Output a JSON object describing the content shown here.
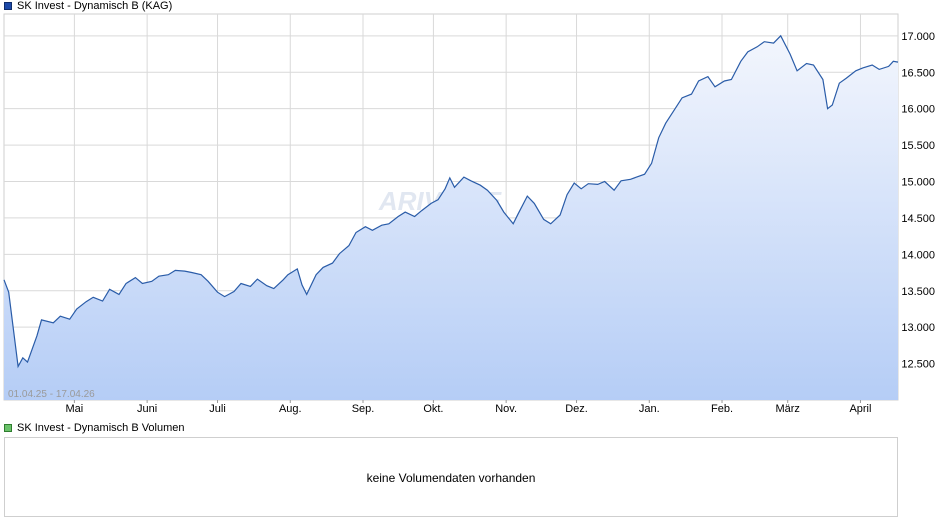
{
  "legend_price": "SK Invest - Dynamisch B (KAG)",
  "legend_volume": "SK Invest - Dynamisch B Volumen",
  "volume_message": "keine Volumendaten vorhanden",
  "range_label": "01.04.25 - 17.04.26",
  "watermark": "ARIVA.DE",
  "colors": {
    "line": "#2a5ca8",
    "fill_top": "#f3f6fd",
    "fill_bottom": "#b5cdf6",
    "grid": "#d9d9d9"
  },
  "chart_data": {
    "type": "area",
    "y_ticks": [
      "17.000",
      "16.500",
      "16.000",
      "15.500",
      "15.000",
      "14.500",
      "14.000",
      "13.500",
      "13.000",
      "12.500"
    ],
    "y_tick_values": [
      17000,
      16500,
      16000,
      15500,
      15000,
      14500,
      14000,
      13500,
      13000,
      12500
    ],
    "ylim": [
      12000,
      17300
    ],
    "x_ticks": [
      "Mai",
      "Juni",
      "Juli",
      "Aug.",
      "Sep.",
      "Okt.",
      "Nov.",
      "Dez.",
      "Jan.",
      "Feb.",
      "März",
      "April"
    ],
    "x_tick_dates": [
      "2025-05-01",
      "2025-06-01",
      "2025-07-01",
      "2025-08-01",
      "2025-09-01",
      "2025-10-01",
      "2025-11-01",
      "2025-12-01",
      "2026-01-01",
      "2026-02-01",
      "2026-03-01",
      "2026-04-01"
    ],
    "xlim": [
      "2025-04-01",
      "2026-04-17"
    ],
    "series": [
      {
        "points": [
          [
            "2025-04-01",
            13650
          ],
          [
            "2025-04-03",
            13480
          ],
          [
            "2025-04-07",
            12460
          ],
          [
            "2025-04-09",
            12580
          ],
          [
            "2025-04-11",
            12520
          ],
          [
            "2025-04-15",
            12880
          ],
          [
            "2025-04-17",
            13100
          ],
          [
            "2025-04-22",
            13060
          ],
          [
            "2025-04-25",
            13150
          ],
          [
            "2025-04-29",
            13110
          ],
          [
            "2025-05-02",
            13250
          ],
          [
            "2025-05-06",
            13350
          ],
          [
            "2025-05-09",
            13410
          ],
          [
            "2025-05-13",
            13360
          ],
          [
            "2025-05-16",
            13520
          ],
          [
            "2025-05-20",
            13450
          ],
          [
            "2025-05-23",
            13600
          ],
          [
            "2025-05-27",
            13680
          ],
          [
            "2025-05-30",
            13600
          ],
          [
            "2025-06-03",
            13630
          ],
          [
            "2025-06-06",
            13700
          ],
          [
            "2025-06-10",
            13720
          ],
          [
            "2025-06-13",
            13780
          ],
          [
            "2025-06-17",
            13770
          ],
          [
            "2025-06-20",
            13750
          ],
          [
            "2025-06-24",
            13720
          ],
          [
            "2025-06-27",
            13630
          ],
          [
            "2025-07-01",
            13480
          ],
          [
            "2025-07-04",
            13420
          ],
          [
            "2025-07-08",
            13490
          ],
          [
            "2025-07-11",
            13600
          ],
          [
            "2025-07-15",
            13560
          ],
          [
            "2025-07-18",
            13660
          ],
          [
            "2025-07-22",
            13570
          ],
          [
            "2025-07-25",
            13530
          ],
          [
            "2025-07-29",
            13650
          ],
          [
            "2025-07-31",
            13720
          ],
          [
            "2025-08-04",
            13800
          ],
          [
            "2025-08-06",
            13580
          ],
          [
            "2025-08-08",
            13450
          ],
          [
            "2025-08-12",
            13720
          ],
          [
            "2025-08-15",
            13820
          ],
          [
            "2025-08-19",
            13880
          ],
          [
            "2025-08-22",
            14010
          ],
          [
            "2025-08-26",
            14120
          ],
          [
            "2025-08-29",
            14300
          ],
          [
            "2025-09-02",
            14380
          ],
          [
            "2025-09-05",
            14330
          ],
          [
            "2025-09-09",
            14400
          ],
          [
            "2025-09-12",
            14420
          ],
          [
            "2025-09-16",
            14520
          ],
          [
            "2025-09-19",
            14580
          ],
          [
            "2025-09-23",
            14520
          ],
          [
            "2025-09-26",
            14600
          ],
          [
            "2025-09-30",
            14700
          ],
          [
            "2025-10-03",
            14750
          ],
          [
            "2025-10-06",
            14900
          ],
          [
            "2025-10-08",
            15050
          ],
          [
            "2025-10-10",
            14920
          ],
          [
            "2025-10-14",
            15060
          ],
          [
            "2025-10-17",
            15010
          ],
          [
            "2025-10-21",
            14950
          ],
          [
            "2025-10-24",
            14880
          ],
          [
            "2025-10-28",
            14740
          ],
          [
            "2025-10-31",
            14580
          ],
          [
            "2025-11-04",
            14420
          ],
          [
            "2025-11-06",
            14550
          ],
          [
            "2025-11-10",
            14800
          ],
          [
            "2025-11-13",
            14700
          ],
          [
            "2025-11-17",
            14480
          ],
          [
            "2025-11-20",
            14420
          ],
          [
            "2025-11-24",
            14540
          ],
          [
            "2025-11-27",
            14820
          ],
          [
            "2025-11-30",
            14980
          ],
          [
            "2025-12-03",
            14900
          ],
          [
            "2025-12-06",
            14970
          ],
          [
            "2025-12-10",
            14960
          ],
          [
            "2025-12-13",
            15000
          ],
          [
            "2025-12-17",
            14880
          ],
          [
            "2025-12-20",
            15010
          ],
          [
            "2025-12-24",
            15030
          ],
          [
            "2025-12-30",
            15100
          ],
          [
            "2026-01-02",
            15250
          ],
          [
            "2026-01-05",
            15600
          ],
          [
            "2026-01-08",
            15800
          ],
          [
            "2026-01-12",
            16000
          ],
          [
            "2026-01-15",
            16150
          ],
          [
            "2026-01-19",
            16200
          ],
          [
            "2026-01-22",
            16380
          ],
          [
            "2026-01-26",
            16440
          ],
          [
            "2026-01-29",
            16300
          ],
          [
            "2026-02-02",
            16380
          ],
          [
            "2026-02-05",
            16400
          ],
          [
            "2026-02-09",
            16650
          ],
          [
            "2026-02-12",
            16780
          ],
          [
            "2026-02-16",
            16850
          ],
          [
            "2026-02-19",
            16920
          ],
          [
            "2026-02-23",
            16900
          ],
          [
            "2026-02-26",
            17000
          ],
          [
            "2026-03-02",
            16750
          ],
          [
            "2026-03-05",
            16520
          ],
          [
            "2026-03-09",
            16620
          ],
          [
            "2026-03-12",
            16600
          ],
          [
            "2026-03-16",
            16400
          ],
          [
            "2026-03-18",
            16000
          ],
          [
            "2026-03-20",
            16050
          ],
          [
            "2026-03-23",
            16350
          ],
          [
            "2026-03-26",
            16420
          ],
          [
            "2026-03-30",
            16520
          ],
          [
            "2026-04-02",
            16560
          ],
          [
            "2026-04-06",
            16600
          ],
          [
            "2026-04-09",
            16540
          ],
          [
            "2026-04-13",
            16580
          ],
          [
            "2026-04-15",
            16650
          ],
          [
            "2026-04-17",
            16640
          ]
        ]
      }
    ]
  }
}
